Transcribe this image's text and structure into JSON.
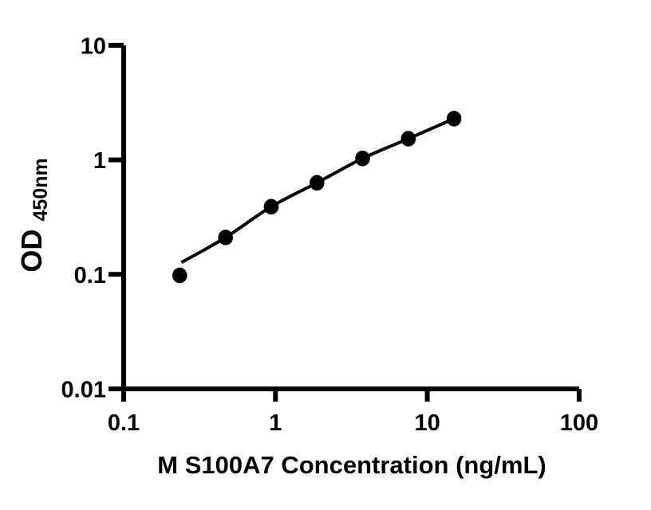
{
  "chart_data": {
    "type": "scatter",
    "title": "",
    "xlabel": "M S100A7 Concentration (ng/mL)",
    "ylabel_main": "OD",
    "ylabel_sub": "450nm",
    "xscale": "log",
    "yscale": "log",
    "xlim": [
      0.1,
      100
    ],
    "ylim": [
      0.01,
      10
    ],
    "x_tick_values": [
      0.1,
      1,
      10,
      100
    ],
    "x_tick_labels": [
      "0.1",
      "1",
      "10",
      "100"
    ],
    "y_tick_values": [
      10,
      1,
      0.1,
      0.01
    ],
    "y_tick_labels": [
      "10",
      "1",
      "0.1",
      "0.01"
    ],
    "grid": false,
    "legend": "none",
    "points": [
      {
        "x": 0.234,
        "y": 0.098
      },
      {
        "x": 0.469,
        "y": 0.21
      },
      {
        "x": 0.938,
        "y": 0.39
      },
      {
        "x": 1.875,
        "y": 0.63
      },
      {
        "x": 3.75,
        "y": 1.03
      },
      {
        "x": 7.5,
        "y": 1.53
      },
      {
        "x": 15,
        "y": 2.29
      }
    ],
    "fit_curve": [
      {
        "x": 0.24,
        "y": 0.127
      },
      {
        "x": 0.469,
        "y": 0.21
      },
      {
        "x": 0.938,
        "y": 0.39
      },
      {
        "x": 1.875,
        "y": 0.63
      },
      {
        "x": 3.75,
        "y": 1.03
      },
      {
        "x": 7.5,
        "y": 1.53
      },
      {
        "x": 15,
        "y": 2.29
      }
    ],
    "marker_color": "#000000",
    "line_color": "#000000",
    "axis_color": "#000000",
    "background_color": "#ffffff"
  }
}
